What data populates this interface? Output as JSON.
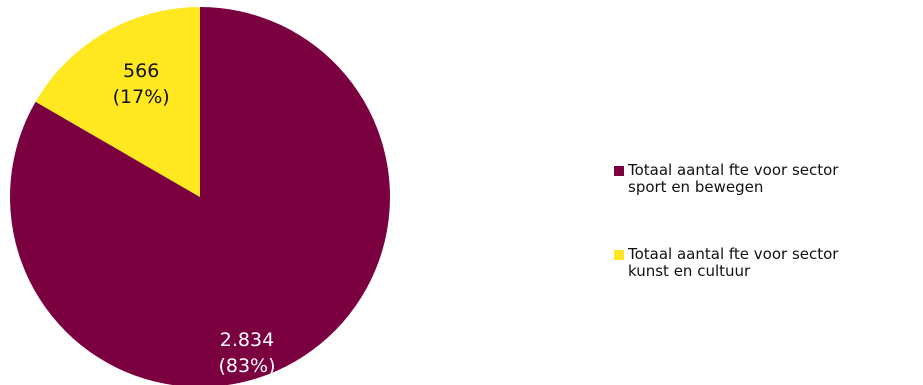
{
  "chart_data": {
    "type": "pie",
    "title": "",
    "slices": [
      {
        "name": "Totaal aantal fte voor sector sport en bewegen",
        "legend_label": "Totaal aantal fte voor sector\nsport en bewegen",
        "value": 2834,
        "value_label": "2.834",
        "percent_label": "(83%)",
        "color": "#7a0040"
      },
      {
        "name": "Totaal aantal fte voor sector kunst en cultuur",
        "legend_label": "Totaal aantal fte voor sector\nkunst en cultuur",
        "value": 566,
        "value_label": "566",
        "percent_label": "(17%)",
        "color": "#ffe81f"
      }
    ],
    "legend_position": "right"
  }
}
